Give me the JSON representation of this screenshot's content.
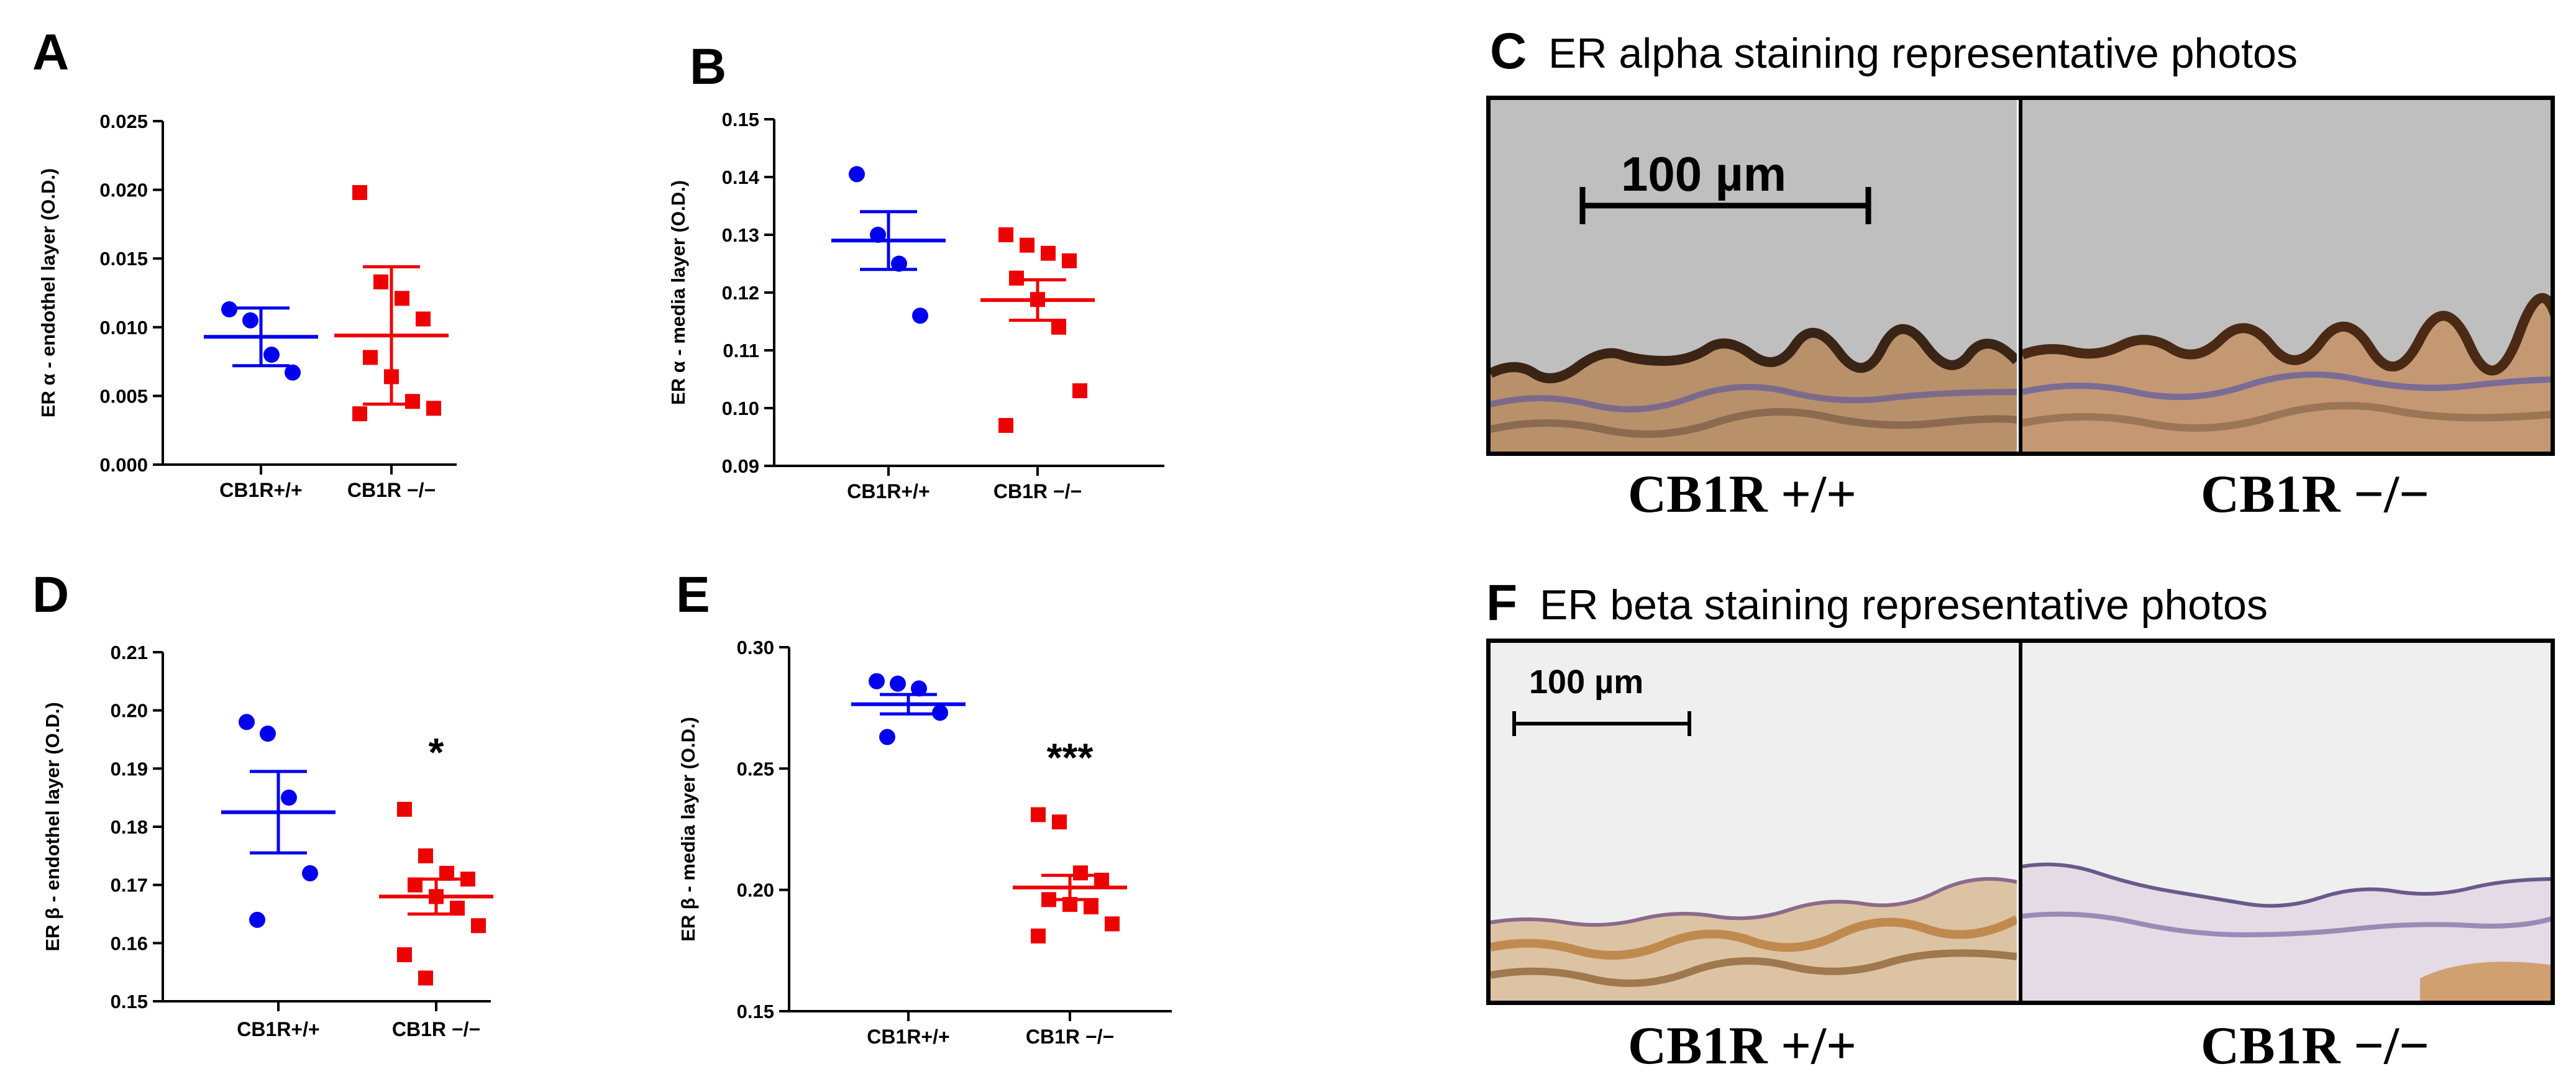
{
  "chart_data": [
    {
      "id": "A",
      "type": "scatter",
      "ylabel": "ER α - endothel layer (O.D.)",
      "ylim": [
        0,
        0.025
      ],
      "yticks": [
        0.0,
        0.005,
        0.01,
        0.015,
        0.02,
        0.025
      ],
      "ytick_labels": [
        "0.000",
        "0.005",
        "0.010",
        "0.015",
        "0.020",
        "0.025"
      ],
      "categories": [
        "CB1R+/+",
        "CB1R −/−"
      ],
      "series": [
        {
          "color": "#0000ee",
          "marker": "circle",
          "points": [
            0.0113,
            0.0105,
            0.008,
            0.0067
          ],
          "mean": 0.0093,
          "err": 0.0021
        },
        {
          "color": "#ee0000",
          "marker": "square",
          "points": [
            0.0198,
            0.0133,
            0.0121,
            0.0106,
            0.0078,
            0.0064,
            0.0046,
            0.0041,
            0.0037
          ],
          "mean": 0.0094,
          "err": 0.005
        }
      ],
      "annotation": ""
    },
    {
      "id": "B",
      "type": "scatter",
      "ylabel": "ER α - media layer (O.D.)",
      "ylim": [
        0.09,
        0.15
      ],
      "yticks": [
        0.09,
        0.1,
        0.11,
        0.12,
        0.13,
        0.14,
        0.15
      ],
      "ytick_labels": [
        "0.09",
        "0.10",
        "0.11",
        "0.12",
        "0.13",
        "0.14",
        "0.15"
      ],
      "categories": [
        "CB1R+/+",
        "CB1R −/−"
      ],
      "series": [
        {
          "color": "#0000ee",
          "marker": "circle",
          "points": [
            0.1405,
            0.13,
            0.125,
            0.116
          ],
          "mean": 0.129,
          "err": 0.005
        },
        {
          "color": "#ee0000",
          "marker": "square",
          "points": [
            0.13,
            0.1282,
            0.1268,
            0.1255,
            0.1225,
            0.1188,
            0.114,
            0.103,
            0.097
          ],
          "mean": 0.1187,
          "err": 0.0035
        }
      ],
      "annotation": ""
    },
    {
      "id": "D",
      "type": "scatter",
      "ylabel": "ER β - endothel layer (O.D.)",
      "ylim": [
        0.15,
        0.21
      ],
      "yticks": [
        0.15,
        0.16,
        0.17,
        0.18,
        0.19,
        0.2,
        0.21
      ],
      "ytick_labels": [
        "0.15",
        "0.16",
        "0.17",
        "0.18",
        "0.19",
        "0.20",
        "0.21"
      ],
      "categories": [
        "CB1R+/+",
        "CB1R −/−"
      ],
      "series": [
        {
          "color": "#0000ee",
          "marker": "circle",
          "points": [
            0.198,
            0.196,
            0.185,
            0.172,
            0.164
          ],
          "mean": 0.1825,
          "err": 0.007
        },
        {
          "color": "#ee0000",
          "marker": "square",
          "points": [
            0.183,
            0.175,
            0.172,
            0.171,
            0.17,
            0.168,
            0.166,
            0.163,
            0.158,
            0.154
          ],
          "mean": 0.168,
          "err": 0.003
        }
      ],
      "annotation": "*"
    },
    {
      "id": "E",
      "type": "scatter",
      "ylabel": "ER β - media layer (O.D.)",
      "ylim": [
        0.15,
        0.3
      ],
      "yticks": [
        0.15,
        0.2,
        0.25,
        0.3
      ],
      "ytick_labels": [
        "0.15",
        "0.20",
        "0.25",
        "0.30"
      ],
      "categories": [
        "CB1R+/+",
        "CB1R −/−"
      ],
      "series": [
        {
          "color": "#0000ee",
          "marker": "circle",
          "points": [
            0.286,
            0.285,
            0.283,
            0.273,
            0.263
          ],
          "mean": 0.2765,
          "err": 0.004
        },
        {
          "color": "#ee0000",
          "marker": "square",
          "points": [
            0.231,
            0.228,
            0.207,
            0.204,
            0.196,
            0.194,
            0.193,
            0.186,
            0.181
          ],
          "mean": 0.201,
          "err": 0.005
        }
      ],
      "annotation": "***"
    }
  ],
  "photos": [
    {
      "id": "C",
      "title": "ER alpha staining representative photos",
      "scalebar": "100 µm",
      "captions": [
        "CB1R +/+",
        "CB1R −/−"
      ]
    },
    {
      "id": "F",
      "title": "ER beta staining representative photos",
      "scalebar": "100 µm",
      "captions": [
        "CB1R +/+",
        "CB1R −/−"
      ]
    }
  ]
}
